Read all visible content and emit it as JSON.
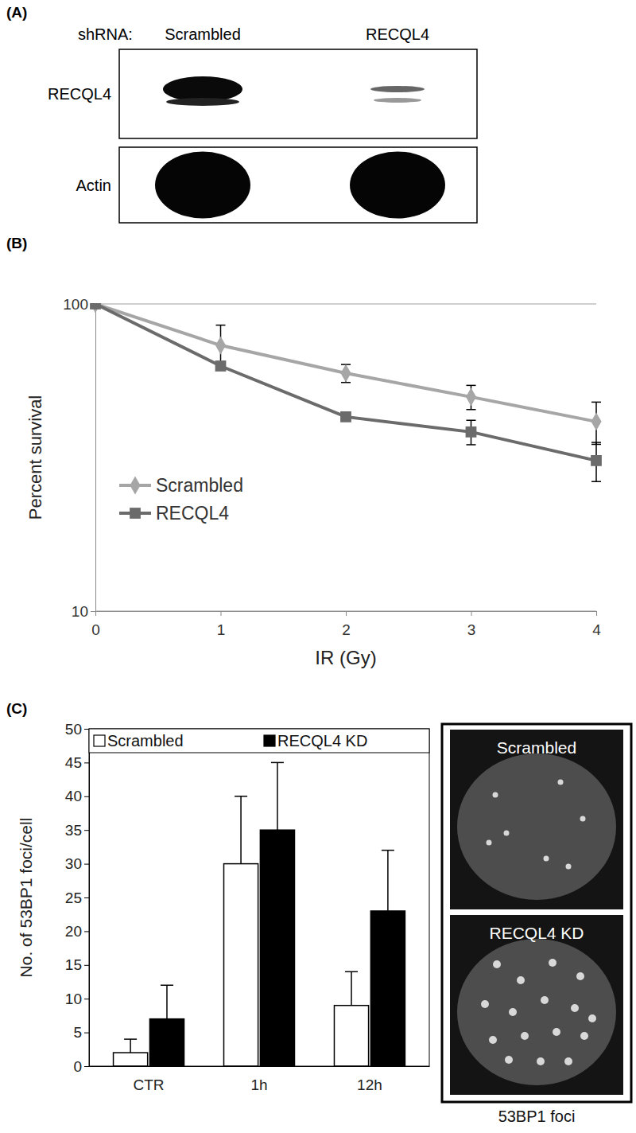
{
  "chart_data": [
    {
      "type": "line",
      "xlabel": "IR (Gy)",
      "ylabel": "Percent survival",
      "x": [
        0,
        1,
        2,
        3,
        4
      ],
      "xlim": [
        0,
        4
      ],
      "xticks": [
        0,
        1,
        2,
        3,
        4
      ],
      "ylim": [
        10,
        100
      ],
      "yticks": [
        10,
        100
      ],
      "log": "y",
      "grid": true,
      "legend": "left",
      "series": [
        {
          "name": "Scrambled",
          "color": "#a6a6a6",
          "marker": "diamond",
          "values": [
            100,
            73.3,
            59.5,
            49.8,
            41.4
          ],
          "errors": [
            0,
            12,
            4,
            4.5,
            6.5
          ]
        },
        {
          "name": "RECQL4",
          "color": "#6b6b6b",
          "marker": "square",
          "values": [
            100,
            62.8,
            42.9,
            38.3,
            30.9
          ],
          "errors": [
            0,
            0,
            0,
            3.5,
            4.5
          ]
        }
      ]
    },
    {
      "type": "bar",
      "ylabel": "No. of 53BP1 foci/cell",
      "categories": [
        "CTR",
        "1h",
        "12h"
      ],
      "ylim": [
        0,
        50
      ],
      "yticks": [
        0,
        5,
        10,
        15,
        20,
        25,
        30,
        35,
        40,
        45,
        50
      ],
      "legend": "top",
      "series": [
        {
          "name": "Scrambled",
          "color": "#ffffff",
          "values": [
            2,
            30,
            9
          ],
          "errors": [
            2,
            10,
            5
          ]
        },
        {
          "name": "RECQL4 KD",
          "color": "#000000",
          "values": [
            7,
            35,
            23
          ],
          "errors": [
            5,
            10,
            9
          ]
        }
      ]
    }
  ],
  "figure": {
    "panel_labels": [
      "(A)",
      "(B)",
      "(C)"
    ],
    "blot": {
      "header": "shRNA:",
      "lanes": [
        "Scrambled",
        "RECQL4"
      ],
      "rows": [
        "RECQL4",
        "Actin"
      ]
    },
    "micrograph": {
      "panels": [
        "Scrambled",
        "RECQL4 KD"
      ],
      "caption": "53BP1 foci"
    }
  }
}
